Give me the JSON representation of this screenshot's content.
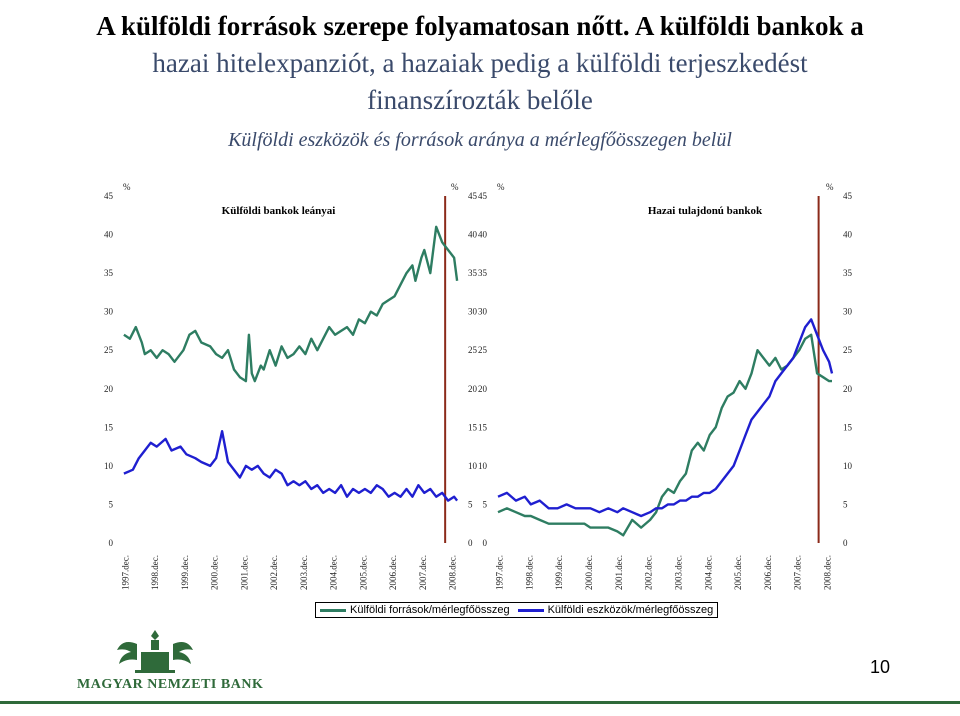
{
  "slide": {
    "title_line1": "A külföldi források szerepe folyamatosan nőtt. A külföldi bankok a",
    "title_line2": "hazai hitelexpanziót, a hazaiak pedig a külföldi terjeszkedést",
    "title_line3": "finanszírozták belőle",
    "subtitle": "Külföldi eszközök és források aránya a mérlegfőösszegen belül",
    "page_number": "10",
    "logo_text": "MAGYAR NEMZETI BANK"
  },
  "colors": {
    "sources": "#2e7d62",
    "assets": "#1f1fd0",
    "marker": "#8b2a1a",
    "rule": "#2f6a3a"
  },
  "legend": {
    "sources_label": "Külföldi források/mérlegfőösszeg",
    "assets_label": "Külföldi eszközök/mérlegfőösszeg"
  },
  "chart_data": [
    {
      "type": "line",
      "title": "Külföldi bankok leányai",
      "unit_left": "%",
      "unit_right": "%",
      "ylim": [
        0,
        45
      ],
      "yticks": [
        "0",
        "5",
        "10",
        "15",
        "20",
        "25",
        "30",
        "35",
        "40",
        "45"
      ],
      "xticks": [
        "1997.dec.",
        "1998.dec.",
        "1999.dec.",
        "2000.dec.",
        "2001.dec.",
        "2002.dec.",
        "2003.dec.",
        "2004.dec.",
        "2005.dec.",
        "2006.dec.",
        "2007.dec.",
        "2008.dec."
      ],
      "xlim": [
        1997.7,
        2009.3
      ],
      "vline": 2008.7,
      "series": [
        {
          "name": "Külföldi források/mérlegfőösszeg",
          "color": "#2e7d62",
          "x": [
            1997.9,
            1998.1,
            1998.3,
            1998.5,
            1998.6,
            1998.8,
            1999.0,
            1999.2,
            1999.4,
            1999.6,
            1999.9,
            2000.1,
            2000.3,
            2000.5,
            2000.8,
            2001.0,
            2001.2,
            2001.4,
            2001.6,
            2001.8,
            2002.0,
            2002.1,
            2002.2,
            2002.3,
            2002.5,
            2002.6,
            2002.8,
            2003.0,
            2003.2,
            2003.4,
            2003.6,
            2003.8,
            2004.0,
            2004.2,
            2004.4,
            2004.6,
            2004.8,
            2005.0,
            2005.2,
            2005.4,
            2005.6,
            2005.8,
            2006.0,
            2006.2,
            2006.4,
            2006.6,
            2006.8,
            2007.0,
            2007.2,
            2007.4,
            2007.6,
            2007.7,
            2007.9,
            2008.0,
            2008.2,
            2008.4,
            2008.6,
            2008.8,
            2009.0,
            2009.1
          ],
          "y": [
            27,
            26.5,
            28,
            26,
            24.5,
            25,
            24,
            25,
            24.5,
            23.5,
            25,
            27,
            27.5,
            26,
            25.5,
            24.5,
            24,
            25,
            22.5,
            21.5,
            21,
            27,
            22,
            21,
            23,
            22.5,
            25,
            23,
            25.5,
            24,
            24.5,
            25.5,
            24.5,
            26.5,
            25,
            26.5,
            28,
            27,
            27.5,
            28,
            27,
            29,
            28.5,
            30,
            29.5,
            31,
            31.5,
            32,
            33.5,
            35,
            36,
            34,
            37,
            38,
            35,
            41,
            39,
            38,
            37,
            34
          ]
        },
        {
          "name": "Külföldi eszközök/mérlegfőösszeg",
          "color": "#1f1fd0",
          "x": [
            1997.9,
            1998.2,
            1998.4,
            1998.6,
            1998.8,
            1999.0,
            1999.3,
            1999.5,
            1999.8,
            2000.0,
            2000.3,
            2000.5,
            2000.8,
            2001.0,
            2001.2,
            2001.4,
            2001.6,
            2001.8,
            2002.0,
            2002.2,
            2002.4,
            2002.6,
            2002.8,
            2003.0,
            2003.2,
            2003.4,
            2003.6,
            2003.8,
            2004.0,
            2004.2,
            2004.4,
            2004.6,
            2004.8,
            2005.0,
            2005.2,
            2005.4,
            2005.6,
            2005.8,
            2006.0,
            2006.2,
            2006.4,
            2006.6,
            2006.8,
            2007.0,
            2007.2,
            2007.4,
            2007.6,
            2007.8,
            2008.0,
            2008.2,
            2008.4,
            2008.6,
            2008.8,
            2009.0,
            2009.1
          ],
          "y": [
            9,
            9.5,
            11,
            12,
            13,
            12.5,
            13.5,
            12,
            12.5,
            11.5,
            11,
            10.5,
            10,
            11,
            14.5,
            10.5,
            9.5,
            8.5,
            10,
            9.5,
            10,
            9,
            8.5,
            9.5,
            9,
            7.5,
            8,
            7.5,
            8,
            7,
            7.5,
            6.5,
            7,
            6.5,
            7.5,
            6,
            7,
            6.5,
            7,
            6.5,
            7.5,
            7,
            6,
            6.5,
            6,
            7,
            6,
            7.5,
            6.5,
            7,
            6,
            6.5,
            5.5,
            6,
            5.5
          ]
        }
      ]
    },
    {
      "type": "line",
      "title": "Hazai tulajdonú bankok",
      "unit_left": "%",
      "unit_right": "%",
      "ylim": [
        0,
        45
      ],
      "yticks": [
        "0",
        "5",
        "10",
        "15",
        "20",
        "25",
        "30",
        "35",
        "40",
        "45"
      ],
      "xticks": [
        "1997.dec.",
        "1998.dec.",
        "1999.dec.",
        "2000.dec.",
        "2001.dec.",
        "2002.dec.",
        "2003.dec.",
        "2004.dec.",
        "2005.dec.",
        "2006.dec.",
        "2007.dec.",
        "2008.dec."
      ],
      "xlim": [
        1997.7,
        2009.3
      ],
      "vline": 2008.65,
      "series": [
        {
          "name": "Külföldi források/mérlegfőösszeg",
          "color": "#2e7d62",
          "x": [
            1997.9,
            1998.2,
            1998.5,
            1998.8,
            1999.0,
            1999.3,
            1999.6,
            1999.9,
            2000.2,
            2000.5,
            2000.8,
            2001.0,
            2001.3,
            2001.6,
            2001.9,
            2002.1,
            2002.4,
            2002.7,
            2003.0,
            2003.2,
            2003.4,
            2003.6,
            2003.8,
            2004.0,
            2004.2,
            2004.4,
            2004.6,
            2004.8,
            2005.0,
            2005.2,
            2005.4,
            2005.6,
            2005.8,
            2006.0,
            2006.2,
            2006.4,
            2006.6,
            2006.8,
            2007.0,
            2007.2,
            2007.4,
            2007.6,
            2007.8,
            2008.0,
            2008.2,
            2008.4,
            2008.6,
            2008.8,
            2009.0,
            2009.1
          ],
          "y": [
            4,
            4.5,
            4,
            3.5,
            3.5,
            3,
            2.5,
            2.5,
            2.5,
            2.5,
            2.5,
            2,
            2,
            2,
            1.5,
            1,
            3,
            2,
            3,
            4,
            6,
            7,
            6.5,
            8,
            9,
            12,
            13,
            12,
            14,
            15,
            17.5,
            19,
            19.5,
            21,
            20,
            22,
            25,
            24,
            23,
            24,
            22.5,
            23,
            24,
            25,
            26.5,
            27,
            22,
            21.5,
            21,
            21
          ]
        },
        {
          "name": "Külföldi eszközök/mérlegfőösszeg",
          "color": "#1f1fd0",
          "x": [
            1997.9,
            1998.2,
            1998.5,
            1998.8,
            1999.0,
            1999.3,
            1999.6,
            1999.9,
            2000.2,
            2000.5,
            2000.8,
            2001.0,
            2001.3,
            2001.6,
            2001.9,
            2002.1,
            2002.4,
            2002.7,
            2003.0,
            2003.2,
            2003.4,
            2003.6,
            2003.8,
            2004.0,
            2004.2,
            2004.4,
            2004.6,
            2004.8,
            2005.0,
            2005.2,
            2005.4,
            2005.6,
            2005.8,
            2006.0,
            2006.2,
            2006.4,
            2006.6,
            2006.8,
            2007.0,
            2007.2,
            2007.4,
            2007.6,
            2007.8,
            2008.0,
            2008.2,
            2008.4,
            2008.6,
            2008.8,
            2009.0,
            2009.1
          ],
          "y": [
            6,
            6.5,
            5.5,
            6,
            5,
            5.5,
            4.5,
            4.5,
            5,
            4.5,
            4.5,
            4.5,
            4,
            4.5,
            4,
            4.5,
            4,
            3.5,
            4,
            4.5,
            4.5,
            5,
            5,
            5.5,
            5.5,
            6,
            6,
            6.5,
            6.5,
            7,
            8,
            9,
            10,
            12,
            14,
            16,
            17,
            18,
            19,
            21,
            22,
            23,
            24,
            26,
            28,
            29,
            27,
            25,
            23.5,
            22
          ]
        }
      ]
    }
  ]
}
